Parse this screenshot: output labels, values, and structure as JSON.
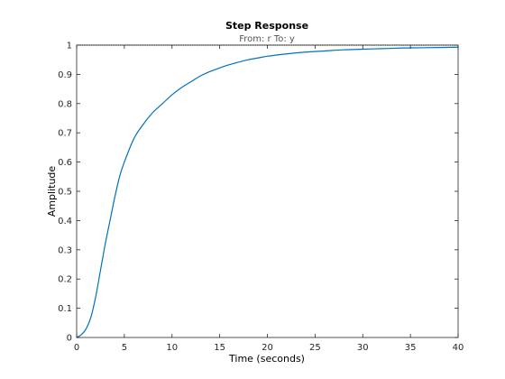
{
  "chart_data": {
    "type": "line",
    "title": "Step Response",
    "subtitle": "From: r  To: y",
    "xlabel": "Time (seconds)",
    "ylabel": "Amplitude",
    "xlim": [
      0,
      40
    ],
    "ylim": [
      0,
      1
    ],
    "xticks": [
      0,
      5,
      10,
      15,
      20,
      25,
      30,
      35,
      40
    ],
    "yticks": [
      0,
      0.1,
      0.2,
      0.3,
      0.4,
      0.5,
      0.6,
      0.7,
      0.8,
      0.9,
      1
    ],
    "xtick_labels": [
      "0",
      "5",
      "10",
      "15",
      "20",
      "25",
      "30",
      "35",
      "40"
    ],
    "ytick_labels": [
      "0",
      "0.1",
      "0.2",
      "0.3",
      "0.4",
      "0.5",
      "0.6",
      "0.7",
      "0.8",
      "0.9",
      "1"
    ],
    "grid": false,
    "reference_line": {
      "y": 1,
      "style": "dotted"
    },
    "series": [
      {
        "color": "#0072bd",
        "x": [
          0,
          0.5,
          1,
          1.5,
          2,
          2.5,
          3,
          3.5,
          4,
          4.5,
          5,
          6,
          7,
          8,
          9,
          10,
          11,
          12,
          13,
          14,
          15,
          16,
          17,
          18,
          19,
          20,
          22,
          24,
          26,
          28,
          30,
          32,
          34,
          36,
          38,
          40
        ],
        "y": [
          0,
          0.01,
          0.03,
          0.07,
          0.14,
          0.23,
          0.32,
          0.4,
          0.48,
          0.55,
          0.6,
          0.68,
          0.73,
          0.77,
          0.8,
          0.83,
          0.855,
          0.875,
          0.895,
          0.91,
          0.922,
          0.933,
          0.942,
          0.95,
          0.956,
          0.962,
          0.97,
          0.976,
          0.98,
          0.984,
          0.986,
          0.988,
          0.99,
          0.991,
          0.992,
          0.993
        ]
      }
    ]
  }
}
